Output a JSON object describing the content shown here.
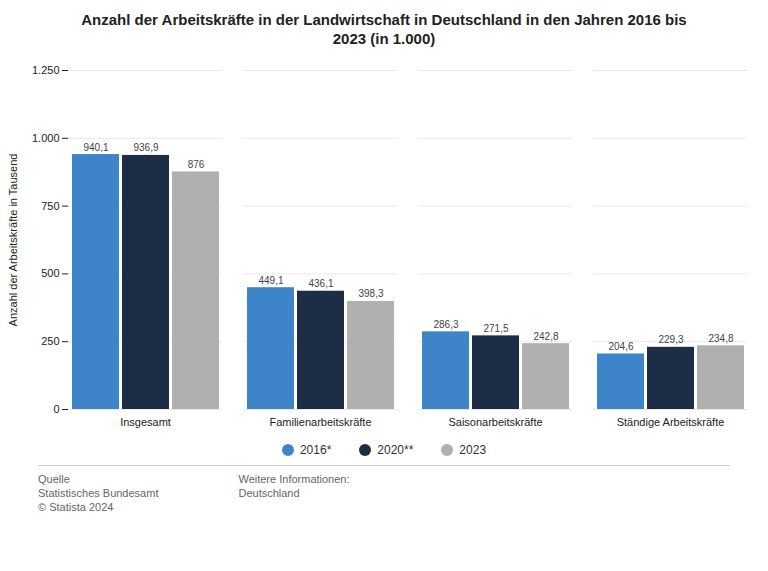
{
  "chart_data": {
    "type": "bar",
    "title": "Anzahl der Arbeitskräfte in der Landwirtschaft in Deutschland in den Jahren 2016 bis\n2023 (in 1.000)",
    "categories": [
      "Insgesamt",
      "Familienarbeitskräfte",
      "Saisonarbeitskräfte",
      "Ständige Arbeitskräfte"
    ],
    "series": [
      {
        "name": "2016*",
        "color": "#3d85c8",
        "values": [
          940.1,
          449.1,
          286.3,
          204.6
        ],
        "value_labels": [
          "940,1",
          "449,1",
          "286,3",
          "204,6"
        ]
      },
      {
        "name": "2020**",
        "color": "#1c2d45",
        "values": [
          936.9,
          436.1,
          271.5,
          229.3
        ],
        "value_labels": [
          "936,9",
          "436,1",
          "271,5",
          "229,3"
        ]
      },
      {
        "name": "2023",
        "color": "#b0b0b0",
        "values": [
          876.0,
          398.3,
          242.8,
          234.8
        ],
        "value_labels": [
          "876",
          "398,3",
          "242,8",
          "234,8"
        ]
      }
    ],
    "ylabel": "Anzahl der Arbeitskräfte in Tausend",
    "ylim": [
      0,
      1250
    ],
    "yticks": [
      0,
      250,
      500,
      750,
      {
        "value": 1000,
        "label": "1.000"
      },
      {
        "value": 1250,
        "label": "1.250"
      }
    ],
    "grid": true,
    "data_labels": true,
    "legend": "bottom",
    "annotations": [
      "Quelle\nStatistisches Bundesamt\n© Statista 2024",
      "Weitere Informationen:\nDeutschland"
    ]
  }
}
